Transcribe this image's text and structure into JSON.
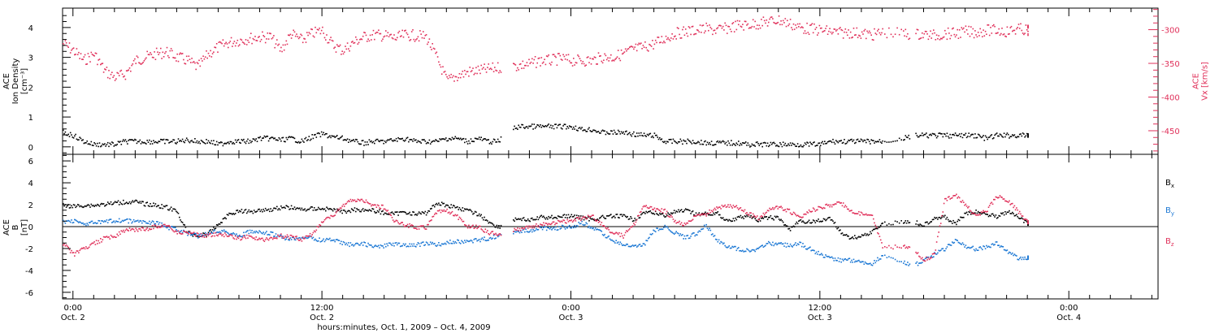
{
  "figure": {
    "x_axis": {
      "title": "hours:minutes, Oct.  1, 2009 – Oct.  4, 2009",
      "ticks": [
        {
          "hour": 24,
          "time": "0:00",
          "date": "Oct. 2"
        },
        {
          "hour": 36,
          "time": "12:00",
          "date": "Oct. 2"
        },
        {
          "hour": 48,
          "time": "0:00",
          "date": "Oct. 3"
        },
        {
          "hour": 60,
          "time": "12:00",
          "date": "Oct. 3"
        },
        {
          "hour": 72,
          "time": "0:00",
          "date": "Oct. 4"
        }
      ]
    }
  },
  "chart_data": [
    {
      "type": "scatter",
      "panel": "plasma",
      "xlim": [
        23.5,
        76.3
      ],
      "x_unit": "hours since Oct 1, 2009 0:00",
      "ylabel": "ACE\nIon Density\n[cm⁻³]",
      "ylim": [
        -0.25,
        4.65
      ],
      "yticks": [
        "0",
        "1",
        "2",
        "3",
        "4"
      ],
      "y2label": "ACE\nVx [km/s]",
      "y2lim": [
        -485,
        -268
      ],
      "y2ticks": [
        "-300",
        "-350",
        "-400",
        "-450"
      ],
      "colors": {
        "density": "#000000",
        "vx": "#e0305a"
      },
      "series": [
        {
          "name": "Ion Density",
          "axis": "left",
          "color": "#000000",
          "x": [
            23.5,
            24,
            24.5,
            25,
            25.5,
            26,
            26.5,
            27,
            27.5,
            28,
            28.5,
            29,
            29.5,
            30,
            30.5,
            31,
            31.5,
            32,
            32.5,
            33,
            33.5,
            34,
            34.5,
            35,
            35.5,
            36,
            36.5,
            37,
            37.5,
            38,
            38.5,
            39,
            39.5,
            40,
            40.5,
            41,
            41.5,
            42,
            42.5,
            43,
            43.5,
            44,
            44.5,
            45,
            45.5,
            46,
            46.5,
            47,
            47.5,
            48,
            48.5,
            49,
            49.5,
            50,
            50.5,
            51,
            51.5,
            52,
            52.5,
            53,
            53.5,
            54,
            54.5,
            55,
            55.5,
            56,
            56.5,
            57,
            57.5,
            58,
            58.5,
            59,
            59.5,
            60,
            60.5,
            61,
            61.5,
            62,
            62.5,
            63,
            64,
            64.5,
            65,
            65.5,
            66,
            66.5,
            67,
            67.5,
            68,
            68.5,
            69,
            69.5,
            70
          ],
          "y": [
            0.5,
            0.4,
            0.2,
            0.1,
            0.1,
            0.1,
            0.2,
            0.2,
            0.2,
            0.2,
            0.2,
            0.2,
            0.25,
            0.2,
            0.2,
            0.1,
            0.2,
            0.2,
            0.2,
            0.3,
            0.3,
            0.25,
            0.3,
            0.2,
            0.35,
            0.45,
            0.35,
            0.3,
            0.2,
            0.15,
            0.2,
            0.2,
            0.25,
            0.3,
            0.2,
            0.2,
            0.2,
            0.3,
            0.3,
            0.2,
            0.3,
            0.2,
            0.2,
            0.6,
            0.7,
            0.7,
            0.7,
            0.7,
            0.7,
            0.7,
            0.6,
            0.6,
            0.5,
            0.5,
            0.5,
            0.45,
            0.4,
            0.4,
            0.2,
            0.2,
            0.2,
            0.2,
            0.15,
            0.15,
            0.15,
            0.15,
            0.1,
            0.1,
            0.1,
            0.1,
            0.1,
            0.1,
            0.1,
            0.1,
            0.2,
            0.2,
            0.2,
            0.2,
            0.2,
            0.2,
            0.3,
            0.4,
            0.4,
            0.4,
            0.4,
            0.4,
            0.4,
            0.4,
            0.3,
            0.4,
            0.4,
            0.4,
            0.4
          ]
        },
        {
          "name": "Vx",
          "axis": "right",
          "color": "#e0305a",
          "x": [
            23.5,
            24,
            24.5,
            25,
            25.5,
            26,
            26.5,
            27,
            27.5,
            28,
            28.5,
            29,
            29.5,
            30,
            30.5,
            31,
            31.5,
            32,
            32.5,
            33,
            33.5,
            34,
            34.5,
            35,
            35.5,
            36,
            36.5,
            37,
            37.5,
            38,
            38.5,
            39,
            39.5,
            40,
            40.5,
            41,
            41.5,
            42,
            42.5,
            43,
            43.5,
            44,
            44.5,
            45,
            45.5,
            46,
            46.5,
            47,
            47.5,
            48,
            48.5,
            49,
            49.5,
            50,
            50.5,
            51,
            51.5,
            52,
            52.5,
            53,
            53.5,
            54,
            54.5,
            55,
            55.5,
            56,
            56.5,
            57,
            57.5,
            58,
            58.5,
            59,
            59.5,
            60,
            60.5,
            61,
            61.5,
            62,
            62.5,
            63,
            64,
            64.5,
            65,
            65.5,
            66,
            66.5,
            67,
            67.5,
            68,
            68.5,
            69,
            69.5,
            70
          ],
          "y": [
            -320,
            -330,
            -345,
            -335,
            -360,
            -370,
            -365,
            -345,
            -340,
            -335,
            -332,
            -340,
            -345,
            -355,
            -335,
            -325,
            -318,
            -315,
            -312,
            -310,
            -310,
            -330,
            -305,
            -315,
            -305,
            -300,
            -322,
            -330,
            -318,
            -310,
            -307,
            -308,
            -312,
            -307,
            -308,
            -310,
            -340,
            -375,
            -368,
            -362,
            -360,
            -358,
            -355,
            -355,
            -352,
            -350,
            -345,
            -345,
            -342,
            -345,
            -345,
            -345,
            -340,
            -340,
            -335,
            -328,
            -325,
            -320,
            -312,
            -305,
            -302,
            -300,
            -298,
            -300,
            -297,
            -293,
            -292,
            -290,
            -287,
            -285,
            -290,
            -296,
            -298,
            -300,
            -302,
            -304,
            -303,
            -305,
            -307,
            -303,
            -305,
            -306,
            -306,
            -308,
            -305,
            -305,
            -302,
            -303,
            -300,
            -300,
            -302,
            -298,
            -300
          ]
        }
      ]
    },
    {
      "type": "line",
      "panel": "magnetic field",
      "xlim": [
        23.5,
        76.3
      ],
      "x_unit": "hours since Oct 1, 2009 0:00",
      "ylabel": "ACE\nB\n[nT]",
      "ylim": [
        -6.6,
        6.6
      ],
      "yticks": [
        "6",
        "4",
        "2",
        "0",
        "-2",
        "-4",
        "-6"
      ],
      "zero_line": true,
      "legend": [
        "Bx",
        "By",
        "Bz"
      ],
      "legend_placement": "right",
      "series": [
        {
          "name": "Bx",
          "color": "#000000",
          "x": [
            23.5,
            24,
            24.5,
            25,
            25.5,
            26,
            26.5,
            27,
            27.5,
            28,
            28.5,
            29,
            29.5,
            30,
            30.5,
            31,
            31.5,
            32,
            32.5,
            33,
            33.5,
            34,
            34.5,
            35,
            35.5,
            36,
            36.5,
            37,
            37.5,
            38,
            38.5,
            39,
            39.5,
            40,
            40.5,
            41,
            41.5,
            42,
            42.5,
            43,
            43.5,
            44,
            44.5,
            45,
            45.5,
            46,
            46.5,
            47,
            47.5,
            48,
            48.5,
            49,
            49.5,
            50,
            50.5,
            51,
            51.5,
            52,
            52.5,
            53,
            53.5,
            54,
            54.5,
            55,
            55.5,
            56,
            56.5,
            57,
            57.5,
            58,
            58.5,
            59,
            59.5,
            60,
            60.5,
            61,
            61.5,
            62,
            62.5,
            63,
            64,
            64.5,
            65,
            65.5,
            66,
            66.5,
            67,
            67.5,
            68,
            68.5,
            69,
            69.5,
            70
          ],
          "y": [
            2.0,
            1.9,
            2.0,
            2.0,
            2.1,
            2.2,
            2.3,
            2.3,
            2.1,
            2.0,
            1.8,
            1.4,
            -0.5,
            -0.8,
            -0.6,
            0.3,
            1.2,
            1.5,
            1.4,
            1.6,
            1.6,
            1.8,
            1.8,
            1.6,
            1.7,
            1.7,
            1.6,
            1.4,
            1.6,
            1.6,
            1.5,
            1.3,
            1.2,
            1.4,
            1.2,
            1.3,
            2.2,
            2.0,
            1.8,
            1.5,
            1.2,
            0.5,
            0.0,
            0.6,
            0.8,
            0.6,
            0.9,
            0.9,
            1.0,
            1.0,
            0.9,
            0.7,
            0.9,
            1.0,
            1.0,
            0.7,
            1.3,
            1.3,
            1.1,
            1.4,
            1.5,
            1.2,
            1.2,
            1.3,
            0.6,
            0.8,
            1.1,
            0.6,
            0.9,
            0.8,
            -0.2,
            0.5,
            0.5,
            0.6,
            0.8,
            -0.5,
            -1.0,
            -0.8,
            -0.4,
            0.3,
            0.5,
            0.5,
            0.2,
            0.9,
            0.9,
            0.3,
            1.2,
            1.4,
            1.2,
            1.0,
            1.4,
            1.0,
            0.3
          ]
        },
        {
          "name": "By",
          "color": "#1c78d4",
          "x": [
            23.5,
            24,
            24.5,
            25,
            25.5,
            26,
            26.5,
            27,
            27.5,
            28,
            28.5,
            29,
            29.5,
            30,
            30.5,
            31,
            31.5,
            32,
            32.5,
            33,
            33.5,
            34,
            34.5,
            35,
            35.5,
            36,
            36.5,
            37,
            37.5,
            38,
            38.5,
            39,
            39.5,
            40,
            40.5,
            41,
            41.5,
            42,
            42.5,
            43,
            43.5,
            44,
            44.5,
            45,
            45.5,
            46,
            46.5,
            47,
            47.5,
            48,
            48.5,
            49,
            49.5,
            50,
            50.5,
            51,
            51.5,
            52,
            52.5,
            53,
            53.5,
            54,
            54.5,
            55,
            55.5,
            56,
            56.5,
            57,
            57.5,
            58,
            58.5,
            59,
            59.5,
            60,
            60.5,
            61,
            61.5,
            62,
            62.5,
            63,
            64,
            64.5,
            65,
            65.5,
            66,
            66.5,
            67,
            67.5,
            68,
            68.5,
            69,
            69.5,
            70
          ],
          "y": [
            0.5,
            0.6,
            0.3,
            0.4,
            0.5,
            0.6,
            0.6,
            0.5,
            0.5,
            0.4,
            0.0,
            -0.2,
            -0.6,
            -0.8,
            -0.5,
            -0.3,
            -0.5,
            -0.8,
            -0.4,
            -0.5,
            -0.6,
            -0.9,
            -1.1,
            -0.9,
            -1.0,
            -1.2,
            -1.1,
            -1.5,
            -1.6,
            -1.5,
            -1.8,
            -1.7,
            -1.5,
            -1.7,
            -1.6,
            -1.5,
            -1.6,
            -1.4,
            -1.3,
            -1.3,
            -1.2,
            -1.0,
            -0.8,
            -0.5,
            -0.4,
            -0.3,
            0.0,
            -0.2,
            0.0,
            0.0,
            0.4,
            0.0,
            -0.6,
            -1.2,
            -1.6,
            -1.8,
            -1.6,
            -0.3,
            0.0,
            -0.5,
            -1.0,
            -0.6,
            0.2,
            -1.2,
            -1.7,
            -2.0,
            -2.1,
            -2.0,
            -1.5,
            -1.5,
            -1.7,
            -1.5,
            -2.0,
            -2.5,
            -2.8,
            -3.0,
            -3.0,
            -3.2,
            -3.3,
            -2.6,
            -3.2,
            -3.5,
            -3.0,
            -2.5,
            -2.0,
            -1.2,
            -1.7,
            -2.0,
            -1.8,
            -1.5,
            -2.2,
            -2.8,
            -2.8
          ]
        },
        {
          "name": "Bz",
          "color": "#e0305a",
          "x": [
            23.5,
            24,
            24.5,
            25,
            25.5,
            26,
            26.5,
            27,
            27.5,
            28,
            28.5,
            29,
            29.5,
            30,
            30.5,
            31,
            31.5,
            32,
            32.5,
            33,
            33.5,
            34,
            34.5,
            35,
            35.5,
            36,
            36.5,
            37,
            37.5,
            38,
            38.5,
            39,
            39.5,
            40,
            40.5,
            41,
            41.5,
            42,
            42.5,
            43,
            43.5,
            44,
            44.5,
            45,
            45.5,
            46,
            46.5,
            47,
            47.5,
            48,
            48.5,
            49,
            49.5,
            50,
            50.5,
            51,
            51.5,
            52,
            52.5,
            53,
            53.5,
            54,
            54.5,
            55,
            55.5,
            56,
            56.5,
            57,
            57.5,
            58,
            58.5,
            59,
            59.5,
            60,
            60.5,
            61,
            61.5,
            62,
            62.5,
            63,
            64,
            64.5,
            65,
            65.5,
            66,
            66.5,
            67,
            67.5,
            68,
            68.5,
            69,
            69.5,
            70
          ],
          "y": [
            -1.5,
            -2.5,
            -2.0,
            -1.5,
            -1.0,
            -0.8,
            -0.3,
            -0.2,
            -0.2,
            0.1,
            0.2,
            -0.5,
            -0.5,
            -0.7,
            -0.8,
            -0.6,
            -0.8,
            -1.0,
            -0.8,
            -1.2,
            -1.0,
            -0.8,
            -0.9,
            -1.1,
            -0.6,
            0.5,
            1.0,
            2.0,
            2.5,
            2.4,
            2.0,
            1.8,
            0.5,
            0.2,
            0.0,
            0.0,
            1.4,
            1.5,
            1.0,
            0.0,
            0.0,
            -0.5,
            -0.6,
            -0.3,
            -0.2,
            0.0,
            0.2,
            0.3,
            0.5,
            0.6,
            0.8,
            1.0,
            0.2,
            -0.5,
            -0.8,
            0.2,
            2.0,
            1.6,
            1.5,
            0.5,
            0.2,
            1.0,
            1.2,
            1.8,
            2.0,
            1.8,
            1.3,
            0.8,
            1.6,
            1.8,
            1.5,
            0.8,
            1.5,
            1.8,
            2.0,
            2.2,
            1.5,
            1.2,
            1.0,
            -1.8,
            -1.8,
            -2.0,
            -3.0,
            -2.5,
            2.5,
            3.0,
            2.0,
            1.0,
            1.5,
            2.8,
            2.5,
            1.5,
            0.5
          ]
        }
      ]
    }
  ]
}
